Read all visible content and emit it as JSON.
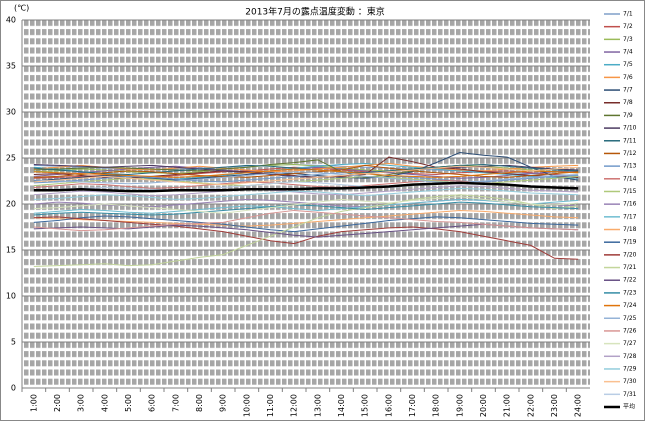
{
  "chart_data": {
    "type": "line",
    "title": "2013年7月の露点温度変動 ：東京",
    "y_label": "(℃)",
    "categories": [
      "1:00",
      "2:00",
      "3:00",
      "4:00",
      "5:00",
      "6:00",
      "7:00",
      "8:00",
      "9:00",
      "10:00",
      "11:00",
      "12:00",
      "13:00",
      "14:00",
      "15:00",
      "16:00",
      "17:00",
      "18:00",
      "19:00",
      "20:00",
      "21:00",
      "22:00",
      "23:00",
      "24:00"
    ],
    "ylim": [
      0,
      40
    ],
    "yticks": [
      0,
      5,
      10,
      15,
      20,
      25,
      30,
      35,
      40
    ],
    "grid": true,
    "legend": "right",
    "series": [
      {
        "name": "7/1",
        "color": "#7f9fc9",
        "values": [
          24.2,
          24.1,
          24.0,
          23.9,
          23.8,
          23.7,
          23.8,
          23.9,
          24.0,
          24.1,
          24.2,
          24.3,
          24.2,
          24.1,
          24.0,
          23.9,
          23.8,
          23.7,
          23.6,
          23.5,
          23.4,
          23.3,
          23.2,
          23.1
        ]
      },
      {
        "name": "7/2",
        "color": "#c0504d",
        "values": [
          22.8,
          22.9,
          23.0,
          23.1,
          23.0,
          22.9,
          23.1,
          23.3,
          23.5,
          23.6,
          23.8,
          24.0,
          23.9,
          23.7,
          23.5,
          23.4,
          23.3,
          23.2,
          23.4,
          23.5,
          23.6,
          23.4,
          23.2,
          23.0
        ]
      },
      {
        "name": "7/3",
        "color": "#9bbb59",
        "values": [
          23.5,
          23.6,
          23.8,
          23.7,
          23.5,
          23.4,
          23.3,
          23.5,
          23.8,
          24.0,
          24.2,
          24.3,
          24.1,
          23.9,
          23.7,
          23.6,
          23.8,
          24.0,
          24.2,
          24.1,
          23.9,
          23.7,
          23.5,
          23.4
        ]
      },
      {
        "name": "7/4",
        "color": "#8064a2",
        "values": [
          23.0,
          23.2,
          23.4,
          23.6,
          23.8,
          24.0,
          24.1,
          23.9,
          23.7,
          23.5,
          23.6,
          23.8,
          24.0,
          23.8,
          23.6,
          23.4,
          23.2,
          23.0,
          22.8,
          22.9,
          23.1,
          23.3,
          23.5,
          23.6
        ]
      },
      {
        "name": "7/5",
        "color": "#4bacc6",
        "values": [
          24.0,
          23.8,
          23.5,
          23.3,
          23.0,
          22.8,
          22.7,
          22.9,
          23.1,
          23.4,
          23.6,
          23.9,
          24.1,
          24.3,
          24.4,
          24.2,
          24.0,
          23.8,
          23.6,
          23.4,
          23.2,
          23.0,
          22.9,
          22.8
        ]
      },
      {
        "name": "7/6",
        "color": "#f79646",
        "values": [
          23.8,
          24.0,
          24.2,
          24.0,
          23.8,
          23.7,
          23.9,
          24.1,
          23.9,
          23.7,
          23.5,
          23.6,
          23.8,
          24.0,
          24.2,
          24.4,
          24.1,
          23.9,
          23.7,
          23.6,
          23.8,
          24.0,
          24.1,
          24.2
        ]
      },
      {
        "name": "7/7",
        "color": "#2c4d75",
        "values": [
          22.5,
          22.7,
          22.9,
          23.1,
          23.0,
          22.8,
          22.6,
          22.8,
          23.0,
          23.2,
          23.4,
          23.3,
          23.1,
          22.9,
          22.8,
          23.0,
          23.5,
          24.5,
          25.6,
          25.3,
          25.1,
          24.0,
          23.0,
          22.6
        ]
      },
      {
        "name": "7/8",
        "color": "#772c2a",
        "values": [
          23.2,
          23.3,
          23.1,
          22.9,
          22.8,
          23.0,
          23.2,
          23.4,
          23.6,
          23.5,
          23.3,
          23.1,
          22.9,
          23.0,
          23.2,
          25.1,
          24.6,
          24.0,
          23.8,
          23.5,
          23.3,
          23.1,
          23.0,
          22.9
        ]
      },
      {
        "name": "7/9",
        "color": "#5f7530",
        "values": [
          23.7,
          23.8,
          23.9,
          24.0,
          23.9,
          23.8,
          23.7,
          23.6,
          23.8,
          24.0,
          24.3,
          24.5,
          24.8,
          23.5,
          22.9,
          23.2,
          23.6,
          24.0,
          24.2,
          24.0,
          23.8,
          23.6,
          23.5,
          23.4
        ]
      },
      {
        "name": "7/10",
        "color": "#4d3b62",
        "values": [
          24.3,
          24.2,
          24.1,
          24.0,
          24.1,
          24.2,
          24.0,
          23.8,
          23.6,
          23.4,
          23.2,
          23.0,
          22.9,
          23.1,
          23.3,
          23.5,
          23.7,
          23.9,
          24.0,
          24.1,
          24.2,
          24.0,
          23.8,
          23.7
        ]
      },
      {
        "name": "7/11",
        "color": "#276a7c",
        "values": [
          23.9,
          23.7,
          23.5,
          23.3,
          23.2,
          23.4,
          23.6,
          23.8,
          24.0,
          24.2,
          24.1,
          23.9,
          23.7,
          23.5,
          23.4,
          23.6,
          23.8,
          24.0,
          24.2,
          24.3,
          24.1,
          23.9,
          23.7,
          23.6
        ]
      },
      {
        "name": "7/12",
        "color": "#b65708",
        "values": [
          22.9,
          23.0,
          23.2,
          23.4,
          23.6,
          23.5,
          23.3,
          23.1,
          23.0,
          22.9,
          23.1,
          23.3,
          23.5,
          23.7,
          24.2,
          23.9,
          23.6,
          23.4,
          23.2,
          23.0,
          22.9,
          23.1,
          23.3,
          23.5
        ]
      },
      {
        "name": "7/13",
        "color": "#729aca",
        "values": [
          22.3,
          22.4,
          22.6,
          22.8,
          23.0,
          22.9,
          22.7,
          22.5,
          22.4,
          22.6,
          22.8,
          23.0,
          23.2,
          23.4,
          23.3,
          23.1,
          22.9,
          22.7,
          22.5,
          22.4,
          22.6,
          22.8,
          23.0,
          23.1
        ]
      },
      {
        "name": "7/14",
        "color": "#cd7371",
        "values": [
          21.8,
          22.0,
          22.2,
          22.1,
          21.9,
          21.7,
          21.8,
          22.0,
          22.2,
          22.4,
          22.3,
          22.1,
          21.9,
          21.8,
          22.0,
          22.2,
          22.4,
          22.6,
          22.5,
          22.3,
          22.1,
          21.9,
          21.8,
          21.7
        ]
      },
      {
        "name": "7/15",
        "color": "#afc97a",
        "values": [
          22.0,
          22.2,
          22.4,
          22.6,
          22.8,
          22.7,
          22.5,
          22.3,
          22.1,
          22.0,
          22.2,
          22.4,
          22.6,
          22.8,
          23.0,
          22.9,
          22.7,
          22.5,
          22.3,
          22.2,
          22.4,
          22.6,
          22.8,
          23.0
        ]
      },
      {
        "name": "7/16",
        "color": "#9983b5",
        "values": [
          20.0,
          20.2,
          20.1,
          19.9,
          19.8,
          19.7,
          19.9,
          20.1,
          20.3,
          20.5,
          20.4,
          20.2,
          20.0,
          19.8,
          19.7,
          19.9,
          20.1,
          20.3,
          20.5,
          20.4,
          20.2,
          20.0,
          19.9,
          19.8
        ]
      },
      {
        "name": "7/17",
        "color": "#6fbdd1",
        "values": [
          19.0,
          19.2,
          19.4,
          19.3,
          19.1,
          19.0,
          19.2,
          19.4,
          19.6,
          19.8,
          19.7,
          19.5,
          19.3,
          19.5,
          19.7,
          19.9,
          20.1,
          20.3,
          20.5,
          20.4,
          20.2,
          20.0,
          20.2,
          20.4
        ]
      },
      {
        "name": "7/18",
        "color": "#f9ab6b",
        "values": [
          18.5,
          18.4,
          18.3,
          18.2,
          18.1,
          18.0,
          17.9,
          17.8,
          17.7,
          17.6,
          17.7,
          17.9,
          18.1,
          18.3,
          18.5,
          18.7,
          18.9,
          19.1,
          19.3,
          19.2,
          19.0,
          18.8,
          18.6,
          18.5
        ]
      },
      {
        "name": "7/19",
        "color": "#3a679c",
        "values": [
          18.0,
          18.2,
          18.5,
          18.7,
          18.6,
          18.4,
          18.2,
          18.0,
          17.8,
          17.5,
          17.2,
          17.0,
          17.3,
          17.6,
          17.9,
          18.2,
          18.4,
          18.6,
          18.5,
          18.3,
          18.1,
          17.9,
          17.8,
          17.7
        ]
      },
      {
        "name": "7/20",
        "color": "#9f3b38",
        "values": [
          18.5,
          18.6,
          18.4,
          18.2,
          18.0,
          17.8,
          17.6,
          17.3,
          17.0,
          16.5,
          16.0,
          15.7,
          16.5,
          17.0,
          17.2,
          17.4,
          17.5,
          17.3,
          17.0,
          16.5,
          16.0,
          15.5,
          14.1,
          14.0
        ]
      },
      {
        "name": "7/21",
        "color": "#c3d69b",
        "values": [
          13.2,
          13.3,
          13.4,
          13.5,
          13.3,
          13.4,
          13.8,
          14.2,
          14.5,
          15.5,
          16.5,
          17.5,
          18.5,
          19.2,
          19.6,
          20.0,
          20.5,
          20.8,
          21.0,
          20.8,
          20.5,
          20.0,
          19.5,
          19.8
        ]
      },
      {
        "name": "7/22",
        "color": "#674f84",
        "values": [
          17.3,
          17.4,
          17.5,
          17.4,
          17.3,
          17.5,
          17.7,
          17.6,
          17.4,
          17.2,
          16.9,
          16.6,
          16.4,
          16.6,
          16.8,
          17.0,
          17.2,
          17.4,
          17.6,
          17.8,
          17.6,
          17.4,
          17.3,
          17.2
        ]
      },
      {
        "name": "7/23",
        "color": "#358da5",
        "values": [
          18.8,
          19.0,
          19.1,
          19.0,
          18.9,
          18.8,
          18.9,
          19.1,
          19.3,
          19.5,
          19.7,
          19.9,
          19.8,
          19.6,
          19.4,
          19.6,
          19.8,
          20.0,
          20.2,
          20.1,
          19.9,
          19.7,
          19.6,
          19.5
        ]
      },
      {
        "name": "7/24",
        "color": "#e0740b",
        "values": [
          23.5,
          23.4,
          23.3,
          23.2,
          23.1,
          23.0,
          22.9,
          23.0,
          23.2,
          23.4,
          23.6,
          23.8,
          23.7,
          23.5,
          23.3,
          23.1,
          23.0,
          22.9,
          23.0,
          23.2,
          23.4,
          23.6,
          23.5,
          23.4
        ]
      },
      {
        "name": "7/25",
        "color": "#95b3d7",
        "values": [
          22.6,
          22.5,
          22.4,
          22.3,
          22.2,
          22.3,
          22.5,
          22.7,
          22.9,
          23.1,
          23.3,
          23.5,
          23.4,
          23.2,
          23.0,
          22.8,
          22.6,
          22.4,
          22.3,
          22.5,
          22.7,
          22.9,
          23.1,
          23.2
        ]
      },
      {
        "name": "7/26",
        "color": "#d99694",
        "values": [
          17.5,
          17.3,
          17.1,
          17.2,
          17.4,
          17.6,
          17.8,
          17.9,
          18.0,
          18.5,
          19.0,
          19.3,
          19.1,
          18.9,
          18.7,
          18.5,
          18.3,
          18.1,
          18.0,
          17.8,
          17.6,
          17.4,
          17.3,
          17.2
        ]
      },
      {
        "name": "7/27",
        "color": "#d7e4bd",
        "values": [
          19.5,
          19.6,
          19.8,
          20.0,
          19.8,
          19.6,
          19.4,
          19.2,
          19.0,
          19.3,
          19.6,
          19.9,
          20.2,
          20.5,
          20.3,
          20.1,
          20.4,
          20.6,
          20.8,
          20.5,
          20.2,
          20.0,
          19.9,
          20.1
        ]
      },
      {
        "name": "7/28",
        "color": "#b2a1c7",
        "values": [
          21.0,
          21.2,
          21.4,
          21.3,
          21.1,
          20.9,
          21.0,
          21.2,
          21.4,
          21.6,
          21.5,
          21.3,
          21.1,
          21.0,
          21.2,
          21.4,
          21.6,
          21.8,
          22.0,
          21.9,
          21.7,
          21.5,
          21.4,
          21.3
        ]
      },
      {
        "name": "7/29",
        "color": "#93cddd",
        "values": [
          20.5,
          20.6,
          20.8,
          21.0,
          20.9,
          20.7,
          20.5,
          20.6,
          20.8,
          21.0,
          21.2,
          21.4,
          21.3,
          21.1,
          20.9,
          21.1,
          21.3,
          21.5,
          21.7,
          21.6,
          21.4,
          21.2,
          21.1,
          21.0
        ]
      },
      {
        "name": "7/30",
        "color": "#fac090",
        "values": [
          22.4,
          22.6,
          22.8,
          23.0,
          22.8,
          22.6,
          22.4,
          22.2,
          22.1,
          22.3,
          22.5,
          22.7,
          22.9,
          23.1,
          23.3,
          23.5,
          23.7,
          23.9,
          24.1,
          24.0,
          23.8,
          23.6,
          23.8,
          24.0
        ]
      },
      {
        "name": "7/31",
        "color": "#b9cde5",
        "values": [
          21.5,
          21.6,
          21.7,
          21.8,
          21.7,
          21.6,
          21.5,
          21.6,
          21.8,
          22.0,
          22.2,
          22.4,
          22.3,
          22.1,
          21.9,
          21.8,
          22.0,
          22.2,
          22.4,
          22.3,
          22.1,
          21.9,
          21.8,
          21.7
        ]
      },
      {
        "name": "平均",
        "color": "#000000",
        "line_width": 2.5,
        "values": [
          21.5,
          21.5,
          21.6,
          21.5,
          21.4,
          21.4,
          21.5,
          21.5,
          21.5,
          21.6,
          21.6,
          21.6,
          21.7,
          21.7,
          21.8,
          21.9,
          22.1,
          22.2,
          22.3,
          22.2,
          22.1,
          21.9,
          21.8,
          21.7
        ]
      }
    ]
  }
}
